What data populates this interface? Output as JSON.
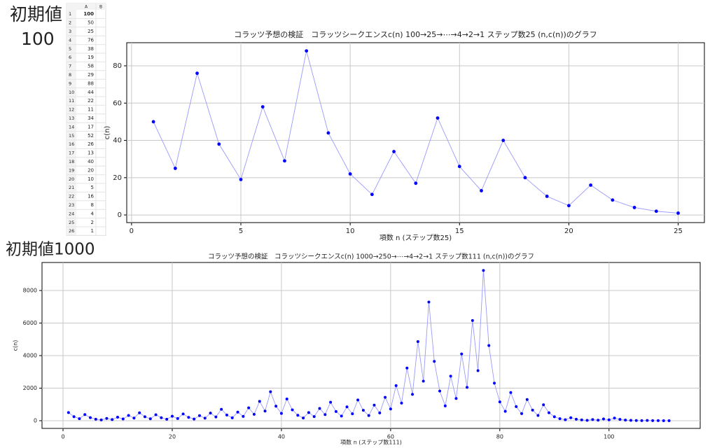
{
  "labels": [
    "初期値",
    "100",
    "初期値1000"
  ],
  "sheet": {
    "columns": [
      "A",
      "B"
    ],
    "row_numbers": [
      1,
      2,
      3,
      4,
      5,
      6,
      7,
      8,
      9,
      10,
      11,
      12,
      13,
      14,
      15,
      16,
      17,
      18,
      19,
      20,
      21,
      22,
      23,
      24,
      25,
      26
    ],
    "values": [
      100,
      50,
      25,
      76,
      38,
      19,
      58,
      29,
      88,
      44,
      22,
      11,
      34,
      17,
      52,
      26,
      13,
      40,
      20,
      10,
      5,
      16,
      8,
      4,
      2,
      1
    ]
  },
  "chart_data": [
    {
      "type": "line",
      "title": "コラッツ予想の検証　コラッツシークエンスc(n) 100→25→⋯→4→2→1 ステップ数25 (n,c(n))のグラフ",
      "xlabel": "項数 n (ステップ数25)",
      "ylabel": "c(n)",
      "x": [
        1,
        2,
        3,
        4,
        5,
        6,
        7,
        8,
        9,
        10,
        11,
        12,
        13,
        14,
        15,
        16,
        17,
        18,
        19,
        20,
        21,
        22,
        23,
        24,
        25
      ],
      "series": [
        {
          "color": "#9a9aff",
          "marker_color": "#0000ff",
          "values": [
            50,
            25,
            76,
            38,
            19,
            58,
            29,
            88,
            44,
            22,
            11,
            34,
            17,
            52,
            26,
            13,
            40,
            20,
            10,
            5,
            16,
            8,
            4,
            2,
            1
          ]
        }
      ],
      "xlim": [
        -0.22,
        26.2
      ],
      "ylim": [
        -4.1,
        92.4
      ],
      "xticks": [
        0,
        5,
        10,
        15,
        20,
        25
      ],
      "yticks": [
        0,
        20,
        40,
        60,
        80
      ],
      "grid": true
    },
    {
      "type": "line",
      "title": "コラッツ予想の検証　コラッツシークエンスc(n) 1000→250→⋯→4→2→1 ステップ数111 (n,c(n))のグラフ",
      "xlabel": "項数 n (ステップ数111)",
      "ylabel": "c(n)",
      "x": [
        1,
        2,
        3,
        4,
        5,
        6,
        7,
        8,
        9,
        10,
        11,
        12,
        13,
        14,
        15,
        16,
        17,
        18,
        19,
        20,
        21,
        22,
        23,
        24,
        25,
        26,
        27,
        28,
        29,
        30,
        31,
        32,
        33,
        34,
        35,
        36,
        37,
        38,
        39,
        40,
        41,
        42,
        43,
        44,
        45,
        46,
        47,
        48,
        49,
        50,
        51,
        52,
        53,
        54,
        55,
        56,
        57,
        58,
        59,
        60,
        61,
        62,
        63,
        64,
        65,
        66,
        67,
        68,
        69,
        70,
        71,
        72,
        73,
        74,
        75,
        76,
        77,
        78,
        79,
        80,
        81,
        82,
        83,
        84,
        85,
        86,
        87,
        88,
        89,
        90,
        91,
        92,
        93,
        94,
        95,
        96,
        97,
        98,
        99,
        100,
        101,
        102,
        103,
        104,
        105,
        106,
        107,
        108,
        109,
        110,
        111
      ],
      "series": [
        {
          "color": "#9a9aff",
          "marker_color": "#0000ff",
          "values": [
            500,
            250,
            125,
            376,
            188,
            94,
            47,
            142,
            71,
            214,
            107,
            322,
            161,
            484,
            242,
            121,
            364,
            182,
            91,
            274,
            137,
            412,
            206,
            103,
            310,
            155,
            466,
            233,
            700,
            350,
            175,
            526,
            263,
            790,
            395,
            1186,
            593,
            1780,
            890,
            445,
            1336,
            668,
            334,
            167,
            502,
            251,
            754,
            377,
            1132,
            566,
            283,
            850,
            425,
            1276,
            638,
            319,
            958,
            479,
            1438,
            719,
            2158,
            1079,
            3238,
            1619,
            4858,
            2429,
            7288,
            3644,
            1822,
            911,
            2734,
            1367,
            4102,
            2051,
            6154,
            3077,
            9232,
            4616,
            2308,
            1154,
            577,
            1732,
            866,
            433,
            1300,
            650,
            325,
            976,
            488,
            244,
            122,
            61,
            184,
            92,
            46,
            23,
            70,
            35,
            106,
            53,
            160,
            80,
            40,
            20,
            10,
            5,
            16,
            8,
            4,
            2,
            1
          ]
        }
      ],
      "xlim": [
        -3.85,
        116.7
      ],
      "ylim": [
        -473,
        9720
      ],
      "xticks": [
        0,
        20,
        40,
        60,
        80,
        100
      ],
      "yticks": [
        0,
        2000,
        4000,
        6000,
        8000
      ],
      "grid": true
    }
  ]
}
